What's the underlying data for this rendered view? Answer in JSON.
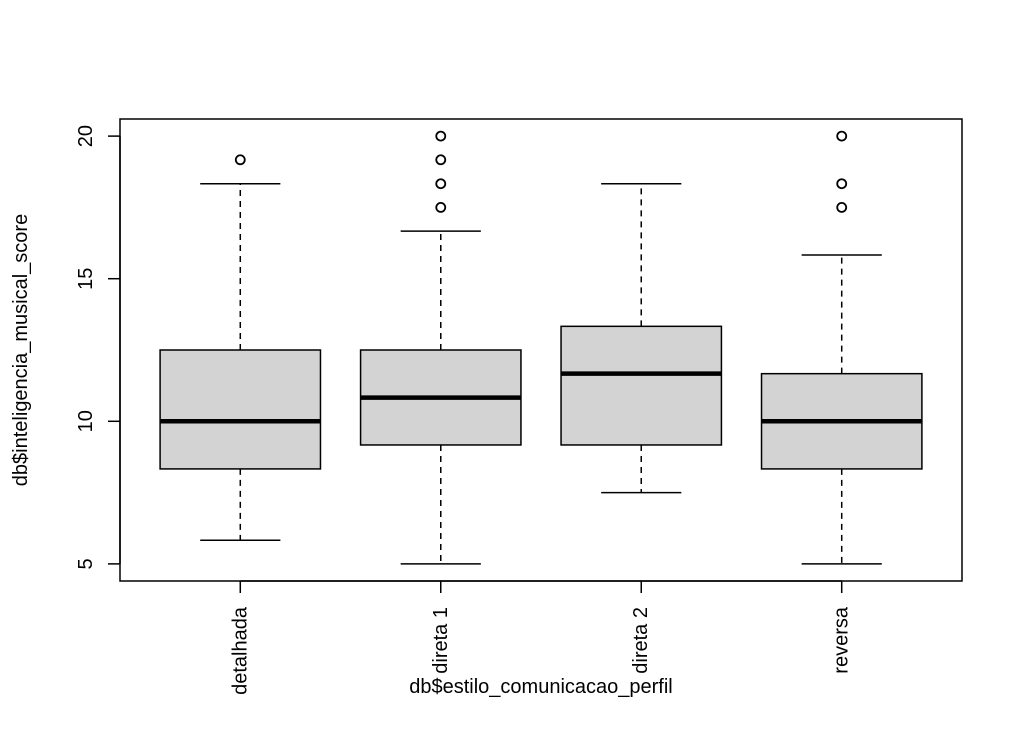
{
  "chart_data": {
    "type": "boxplot",
    "title": "",
    "xlabel": "db$estilo_comunicacao_perfil",
    "ylabel": "db$inteligencia_musical_score",
    "ylim": [
      4.4,
      20.6
    ],
    "yticks": [
      5,
      10,
      15,
      20
    ],
    "grid": false,
    "legend": "none",
    "box_fill": "#d3d3d3",
    "categories": [
      "detalhada",
      "direta 1",
      "direta 2",
      "reversa"
    ],
    "boxes": [
      {
        "category": "detalhada",
        "whisker_low": 5.83,
        "q1": 8.33,
        "median": 10.0,
        "q3": 12.5,
        "whisker_high": 18.33,
        "outliers": [
          19.17
        ]
      },
      {
        "category": "direta 1",
        "whisker_low": 5.0,
        "q1": 9.17,
        "median": 10.83,
        "q3": 12.5,
        "whisker_high": 16.67,
        "outliers": [
          17.5,
          18.33,
          19.17,
          20.0
        ]
      },
      {
        "category": "direta 2",
        "whisker_low": 7.5,
        "q1": 9.17,
        "median": 11.67,
        "q3": 13.33,
        "whisker_high": 18.33,
        "outliers": []
      },
      {
        "category": "reversa",
        "whisker_low": 5.0,
        "q1": 8.33,
        "median": 10.0,
        "q3": 11.67,
        "whisker_high": 15.83,
        "outliers": [
          17.5,
          18.33,
          20.0
        ]
      }
    ]
  }
}
